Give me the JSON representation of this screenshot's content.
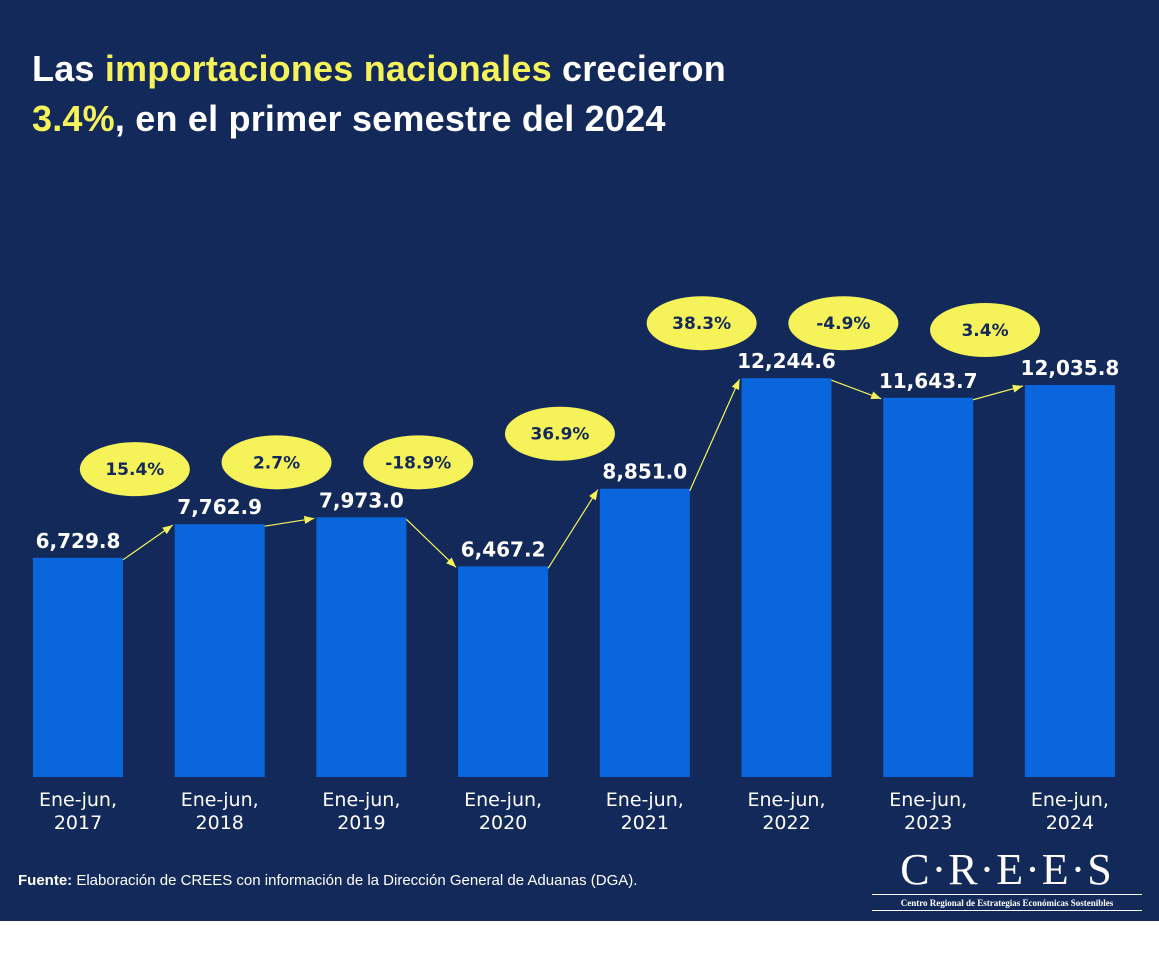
{
  "title": {
    "part1": "Las ",
    "highlight1": "importaciones nacionales",
    "part2": " crecieron",
    "highlight2": "3.4%",
    "part3": ", en el primer semestre del 2024"
  },
  "colors": {
    "background": "#13295a",
    "bar": "#0a66dc",
    "accent": "#f5f25a",
    "text": "#ffffff"
  },
  "chart_data": {
    "type": "bar",
    "title": "Las importaciones nacionales crecieron 3.4%, en el primer semestre del 2024",
    "xlabel": "",
    "ylabel": "",
    "grid": false,
    "categories": [
      [
        "Ene-jun,",
        "2017"
      ],
      [
        "Ene-jun,",
        "2018"
      ],
      [
        "Ene-jun,",
        "2019"
      ],
      [
        "Ene-jun,",
        "2020"
      ],
      [
        "Ene-jun,",
        "2021"
      ],
      [
        "Ene-jun,",
        "2022"
      ],
      [
        "Ene-jun,",
        "2023"
      ],
      [
        "Ene-jun,",
        "2024"
      ]
    ],
    "values": [
      6729.8,
      7762.9,
      7973.0,
      6467.2,
      8851.0,
      12244.6,
      11643.7,
      12035.8
    ],
    "value_labels": [
      "6,729.8",
      "7,762.9",
      "7,973.0",
      "6,467.2",
      "8,851.0",
      "12,244.6",
      "11,643.7",
      "12,035.8"
    ],
    "growth_labels": [
      "15.4%",
      "2.7%",
      "-18.9%",
      "36.9%",
      "38.3%",
      "-4.9%",
      "3.4%"
    ],
    "ylim": [
      0,
      12500
    ]
  },
  "footer": {
    "source_label": "Fuente:",
    "source_text": " Elaboración de CREES con información de la Dirección General de Aduanas (DGA).",
    "logo_mark": "C·R·E·E·S",
    "logo_subtitle": "Centro Regional de Estrategias Económicas Sostenibles"
  }
}
